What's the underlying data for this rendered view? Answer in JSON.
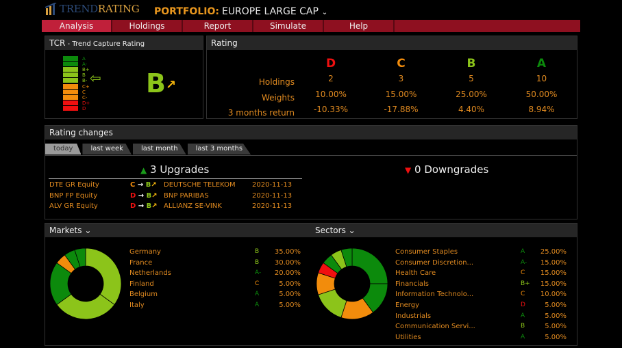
{
  "header": {
    "logo_a": "TREND",
    "logo_b": "RATING",
    "portfolio_label": "PORTFOLIO:",
    "portfolio_name": "EUROPE LARGE CAP",
    "chevron": "⌄"
  },
  "nav": [
    "Analysis",
    "Holdings",
    "Report",
    "Simulate",
    "Help"
  ],
  "tcr": {
    "title": "TCR",
    "subtitle": " - Trend Capture Rating",
    "scale": [
      "A",
      "A-",
      "B+",
      "B",
      "B-",
      "C+",
      "C",
      "C-",
      "D+",
      "D"
    ],
    "current": "B",
    "trend_arrow": "↗",
    "arrow": "⇦"
  },
  "rating": {
    "title": "Rating",
    "row_labels": [
      "Holdings",
      "Weights",
      "3 months return"
    ],
    "columns": [
      {
        "grade": "D",
        "holdings": "2",
        "weight": "10.00%",
        "ret": "-10.33%"
      },
      {
        "grade": "C",
        "holdings": "3",
        "weight": "15.00%",
        "ret": "-17.88%"
      },
      {
        "grade": "B",
        "holdings": "5",
        "weight": "25.00%",
        "ret": "4.40%"
      },
      {
        "grade": "A",
        "holdings": "10",
        "weight": "50.00%",
        "ret": "8.94%"
      }
    ]
  },
  "changes": {
    "title": "Rating changes",
    "tabs": [
      "today",
      "last week",
      "last month",
      "last 3 months"
    ],
    "upgrades": "3 Upgrades",
    "downgrades": "0 Downgrades",
    "up_icon": "▲",
    "down_icon": "▼",
    "rows": [
      {
        "ticker": "DTE GR Equity",
        "from": "C",
        "to": "B",
        "name": "DEUTSCHE TELEKOM",
        "date": "2020-11-13"
      },
      {
        "ticker": "BNP FP Equity",
        "from": "D",
        "to": "B",
        "name": "BNP PARIBAS",
        "date": "2020-11-13"
      },
      {
        "ticker": "ALV GR Equity",
        "from": "D",
        "to": "B",
        "name": "ALLIANZ SE-VINK",
        "date": "2020-11-13"
      }
    ]
  },
  "colors": {
    "A": "#0c8a0c",
    "A-": "#0c8a0c",
    "B+": "#8cc41a",
    "B": "#8cc41a",
    "B-": "#8cc41a",
    "C+": "#f28c0c",
    "C": "#f28c0c",
    "C-": "#f28c0c",
    "D+": "#f01010",
    "D": "#f01010"
  },
  "markets": {
    "title": "Markets ⌄",
    "items": [
      {
        "name": "Germany",
        "rating": "B",
        "value": 35,
        "pct": "35.00%"
      },
      {
        "name": "France",
        "rating": "B",
        "value": 30,
        "pct": "30.00%"
      },
      {
        "name": "Netherlands",
        "rating": "A-",
        "value": 20,
        "pct": "20.00%"
      },
      {
        "name": "Finland",
        "rating": "C",
        "value": 5,
        "pct": "5.00%"
      },
      {
        "name": "Belgium",
        "rating": "A",
        "value": 5,
        "pct": "5.00%"
      },
      {
        "name": "Italy",
        "rating": "A",
        "value": 5,
        "pct": "5.00%"
      }
    ]
  },
  "sectors": {
    "title": "Sectors ⌄",
    "items": [
      {
        "name": "Consumer Staples",
        "rating": "A",
        "value": 25,
        "pct": "25.00%"
      },
      {
        "name": "Consumer Discretion...",
        "rating": "A-",
        "value": 15,
        "pct": "15.00%"
      },
      {
        "name": "Health Care",
        "rating": "C",
        "value": 15,
        "pct": "15.00%"
      },
      {
        "name": "Financials",
        "rating": "B+",
        "value": 15,
        "pct": "15.00%"
      },
      {
        "name": "Information Technolo...",
        "rating": "C",
        "value": 10,
        "pct": "10.00%"
      },
      {
        "name": "Energy",
        "rating": "D",
        "value": 5,
        "pct": "5.00%"
      },
      {
        "name": "Industrials",
        "rating": "A",
        "value": 5,
        "pct": "5.00%"
      },
      {
        "name": "Communication Servi...",
        "rating": "B",
        "value": 5,
        "pct": "5.00%"
      },
      {
        "name": "Utilities",
        "rating": "A",
        "value": 5,
        "pct": "5.00%"
      }
    ]
  }
}
